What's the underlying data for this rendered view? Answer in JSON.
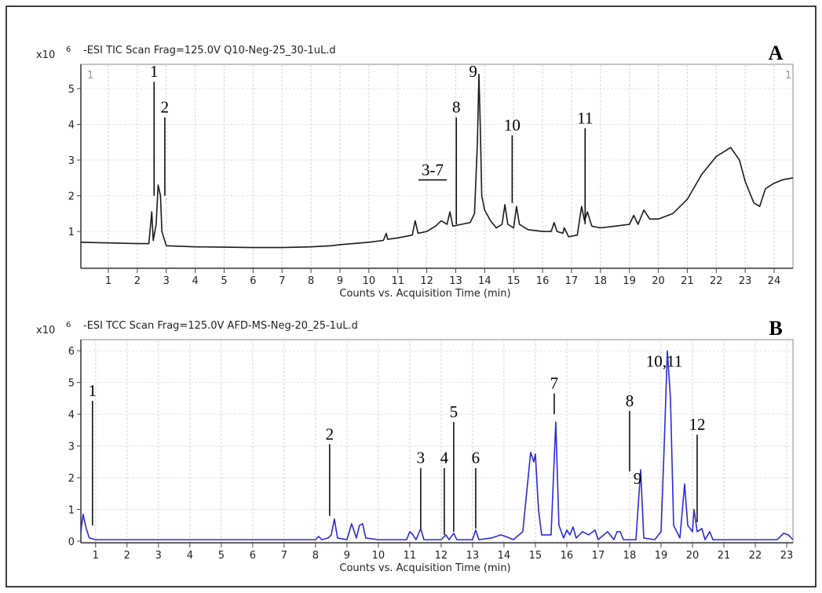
{
  "chart_data": [
    {
      "type": "line",
      "title": "-ESI TIC Scan Frag=125.0V Q10-Neg-25_30-1uL.d",
      "panel_label": "A",
      "y_multiplier": "x10",
      "y_exponent": "6",
      "range_markers": [
        "1",
        "1"
      ],
      "x_label": "Counts vs. Acquisition Time (min)",
      "color": "#1a1a1a",
      "grid": true,
      "xlim": [
        0.05,
        24.65
      ],
      "xticks": [
        1,
        2,
        3,
        4,
        5,
        6,
        7,
        8,
        9,
        10,
        11,
        12,
        13,
        14,
        15,
        16,
        17,
        18,
        19,
        20,
        21,
        22,
        23,
        24
      ],
      "ylim": [
        -0.03,
        5.68
      ],
      "yticks": [
        1,
        2,
        3,
        4,
        5
      ],
      "x": [
        0.05,
        1,
        2,
        2.4,
        2.5,
        2.55,
        2.65,
        2.72,
        2.8,
        2.85,
        3,
        4,
        5,
        6,
        7,
        8,
        8.7,
        9,
        10,
        10.5,
        10.6,
        10.65,
        11,
        11.5,
        11.6,
        11.7,
        12,
        12.3,
        12.5,
        12.7,
        12.8,
        12.9,
        13.2,
        13.5,
        13.65,
        13.75,
        13.8,
        13.85,
        13.9,
        14,
        14.2,
        14.4,
        14.6,
        14.7,
        14.8,
        15,
        15.1,
        15.2,
        15.5,
        16,
        16.3,
        16.4,
        16.5,
        16.7,
        16.75,
        16.9,
        17.2,
        17.35,
        17.45,
        17.55,
        17.7,
        18,
        18.5,
        19,
        19.15,
        19.3,
        19.5,
        19.7,
        20,
        20.5,
        21,
        21.5,
        22,
        22.5,
        22.8,
        23,
        23.3,
        23.5,
        23.7,
        24,
        24.3,
        24.65
      ],
      "values": [
        0.7,
        0.68,
        0.66,
        0.66,
        1.55,
        0.75,
        1.2,
        2.3,
        2.0,
        1.0,
        0.6,
        0.57,
        0.56,
        0.55,
        0.55,
        0.57,
        0.6,
        0.63,
        0.7,
        0.75,
        0.95,
        0.78,
        0.82,
        0.9,
        1.3,
        0.95,
        1.0,
        1.15,
        1.3,
        1.2,
        1.55,
        1.15,
        1.2,
        1.25,
        1.5,
        3.5,
        5.4,
        3.9,
        2.0,
        1.6,
        1.3,
        1.1,
        1.2,
        1.75,
        1.2,
        1.1,
        1.7,
        1.2,
        1.05,
        1.0,
        1.0,
        1.25,
        1.0,
        0.95,
        1.1,
        0.85,
        0.9,
        1.7,
        1.3,
        1.55,
        1.15,
        1.1,
        1.15,
        1.2,
        1.45,
        1.2,
        1.6,
        1.35,
        1.35,
        1.5,
        1.9,
        2.6,
        3.1,
        3.35,
        3.0,
        2.4,
        1.8,
        1.7,
        2.2,
        2.35,
        2.45,
        2.5
      ],
      "annotations": [
        {
          "text": "1",
          "x": 2.58,
          "y": 5.5,
          "y_end": 2.0
        },
        {
          "text": "2",
          "x": 2.95,
          "y": 4.5,
          "y_end": 2.0
        },
        {
          "text": "3-7",
          "x": 12.2,
          "y": 2.75,
          "underline": true
        },
        {
          "text": "8",
          "x": 13.02,
          "y": 4.5,
          "y_end": 1.2
        },
        {
          "text": "9",
          "x": 13.6,
          "y": 5.5
        },
        {
          "text": "10",
          "x": 14.95,
          "y": 4.0,
          "y_end": 1.8
        },
        {
          "text": "11",
          "x": 17.47,
          "y": 4.2,
          "y_end": 1.2
        }
      ]
    },
    {
      "type": "line",
      "title": "-ESI TCC Scan Frag=125.0V AFD-MS-Neg-20_25-1uL.d",
      "panel_label": "B",
      "y_multiplier": "x10",
      "y_exponent": "6",
      "x_label": "Counts vs. Acquisition Time (min)",
      "color": "#2a2ad8",
      "grid": true,
      "xlim": [
        0.53,
        23.2
      ],
      "xticks": [
        1,
        2,
        3,
        4,
        5,
        6,
        7,
        8,
        9,
        10,
        11,
        12,
        13,
        14,
        15,
        16,
        17,
        18,
        19,
        20,
        21,
        22,
        23
      ],
      "ylim": [
        -0.05,
        6.35
      ],
      "yticks": [
        0,
        1,
        2,
        3,
        4,
        5,
        6
      ],
      "x": [
        0.53,
        0.6,
        0.7,
        0.8,
        1,
        8,
        8.1,
        8.2,
        8.4,
        8.5,
        8.6,
        8.7,
        9,
        9.15,
        9.3,
        9.4,
        9.5,
        9.6,
        10,
        10.9,
        11,
        11.1,
        11.2,
        11.35,
        11.45,
        12,
        12.15,
        12.25,
        12.4,
        12.5,
        13,
        13.1,
        13.2,
        13.6,
        13.9,
        14.05,
        14.3,
        14.6,
        14.85,
        14.95,
        15,
        15.1,
        15.2,
        15.5,
        15.65,
        15.75,
        15.9,
        16,
        16.1,
        16.2,
        16.3,
        16.5,
        16.7,
        16.9,
        17,
        17.3,
        17.5,
        17.6,
        17.7,
        17.8,
        18.2,
        18.35,
        18.45,
        18.8,
        19,
        19.1,
        19.2,
        19.3,
        19.4,
        19.6,
        19.75,
        19.85,
        20,
        20.05,
        20.15,
        20.3,
        20.4,
        20.55,
        20.65,
        22.7,
        22.9,
        23.05,
        23.2
      ],
      "values": [
        0.3,
        0.85,
        0.4,
        0.1,
        0.05,
        0.05,
        0.15,
        0.05,
        0.1,
        0.2,
        0.7,
        0.1,
        0.05,
        0.55,
        0.1,
        0.5,
        0.55,
        0.1,
        0.05,
        0.05,
        0.3,
        0.2,
        0.05,
        0.4,
        0.05,
        0.05,
        0.2,
        0.05,
        0.25,
        0.05,
        0.05,
        0.35,
        0.05,
        0.1,
        0.2,
        0.15,
        0.05,
        0.3,
        2.8,
        2.5,
        2.75,
        1.0,
        0.2,
        0.2,
        3.75,
        0.5,
        0.1,
        0.35,
        0.2,
        0.45,
        0.1,
        0.3,
        0.2,
        0.35,
        0.05,
        0.3,
        0.05,
        0.3,
        0.3,
        0.05,
        0.05,
        2.25,
        0.1,
        0.05,
        0.3,
        3.0,
        6.0,
        4.5,
        0.5,
        0.1,
        1.8,
        0.5,
        0.3,
        1.0,
        0.3,
        0.4,
        0.05,
        0.3,
        0.05,
        0.05,
        0.25,
        0.2,
        0.05
      ],
      "annotations": [
        {
          "text": "1",
          "x": 0.9,
          "y": 4.77,
          "y_end": 0.5
        },
        {
          "text": "2",
          "x": 8.45,
          "y": 3.4,
          "y_end": 0.8
        },
        {
          "text": "3",
          "x": 11.35,
          "y": 2.65,
          "y_end": 0.4
        },
        {
          "text": "4",
          "x": 12.1,
          "y": 2.65,
          "y_end": 0.2
        },
        {
          "text": "5",
          "x": 12.4,
          "y": 4.1,
          "y_end": 0.3
        },
        {
          "text": "6",
          "x": 13.1,
          "y": 2.65,
          "y_end": 0.4
        },
        {
          "text": "7",
          "x": 15.6,
          "y": 5.0,
          "y_end": 4.0
        },
        {
          "text": "8",
          "x": 18.0,
          "y": 4.45,
          "y_end": 2.2
        },
        {
          "text": "9",
          "x": 18.25,
          "y": 2.0
        },
        {
          "text": "10,11",
          "x": 19.1,
          "y": 5.7
        },
        {
          "text": "12",
          "x": 20.15,
          "y": 3.7,
          "y_end": 0.6
        }
      ]
    }
  ]
}
